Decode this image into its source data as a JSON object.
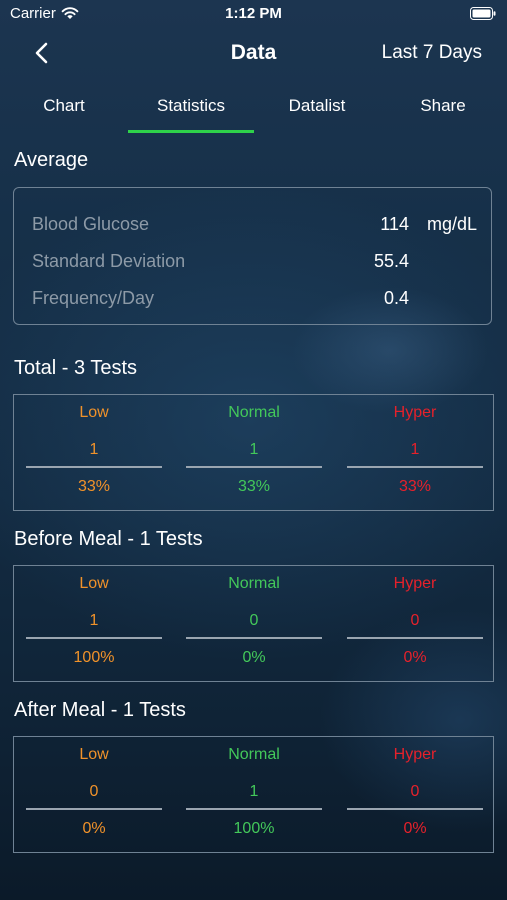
{
  "status_bar": {
    "carrier": "Carrier",
    "time": "1:12 PM"
  },
  "nav": {
    "title": "Data",
    "range": "Last 7 Days"
  },
  "tabs": [
    {
      "label": "Chart",
      "active": false
    },
    {
      "label": "Statistics",
      "active": true
    },
    {
      "label": "Datalist",
      "active": false
    },
    {
      "label": "Share",
      "active": false
    }
  ],
  "colors": {
    "accent": "#2ed24a",
    "low": "#f0922a",
    "normal": "#43c85a",
    "hyper": "#e5212b"
  },
  "average": {
    "title": "Average",
    "rows": [
      {
        "label": "Blood Glucose",
        "value": "114",
        "unit": "mg/dL"
      },
      {
        "label": "Standard Deviation",
        "value": "55.4",
        "unit": ""
      },
      {
        "label": "Frequency/Day",
        "value": "0.4",
        "unit": ""
      }
    ]
  },
  "sections": [
    {
      "title": "Total - 3 Tests",
      "columns": [
        {
          "label": "Low",
          "count": "1",
          "percent": "33%"
        },
        {
          "label": "Normal",
          "count": "1",
          "percent": "33%"
        },
        {
          "label": "Hyper",
          "count": "1",
          "percent": "33%"
        }
      ]
    },
    {
      "title": "Before Meal - 1 Tests",
      "columns": [
        {
          "label": "Low",
          "count": "1",
          "percent": "100%"
        },
        {
          "label": "Normal",
          "count": "0",
          "percent": "0%"
        },
        {
          "label": "Hyper",
          "count": "0",
          "percent": "0%"
        }
      ]
    },
    {
      "title": "After Meal - 1 Tests",
      "columns": [
        {
          "label": "Low",
          "count": "0",
          "percent": "0%"
        },
        {
          "label": "Normal",
          "count": "1",
          "percent": "100%"
        },
        {
          "label": "Hyper",
          "count": "0",
          "percent": "0%"
        }
      ]
    }
  ],
  "icons": {
    "wifi": "wifi-icon",
    "battery": "battery-icon",
    "back": "chevron-left-icon"
  }
}
